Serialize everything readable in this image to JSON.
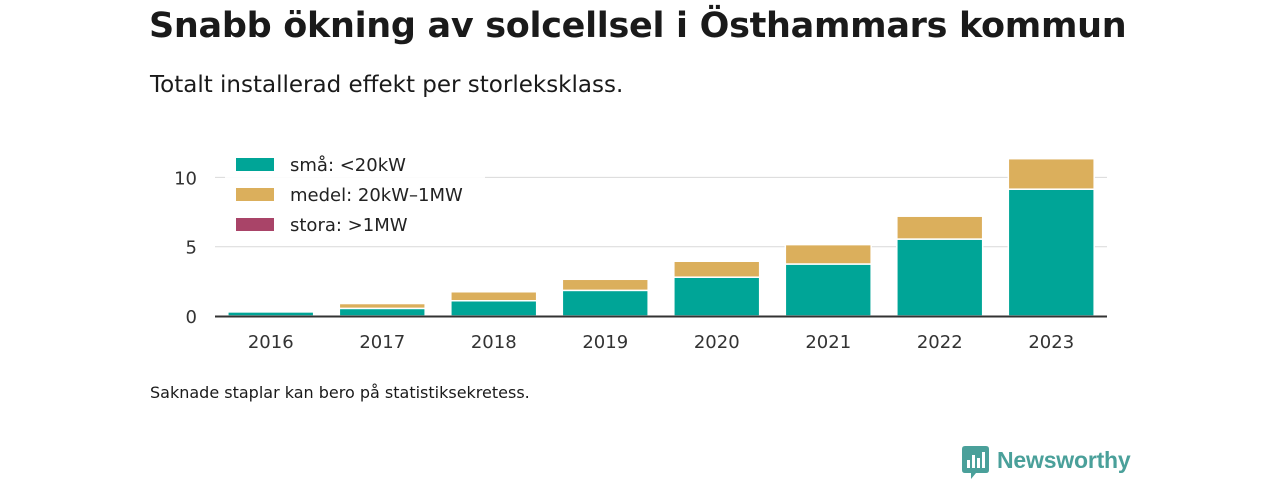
{
  "title": "Snabb ökning av solcellsel i Östhammars kommun",
  "subtitle": "Totalt installerad effekt per storleksklass.",
  "footnote": "Saknade staplar kan bero på statistiksekretess.",
  "brand": {
    "name": "Newsworthy",
    "icon": "newsworthy-logo-icon",
    "color": "#4aa09a"
  },
  "chart_data": {
    "type": "bar",
    "stacked": true,
    "categories": [
      "2016",
      "2017",
      "2018",
      "2019",
      "2020",
      "2021",
      "2022",
      "2023"
    ],
    "series": [
      {
        "name": "små: <20kW",
        "color": "#00a597",
        "values": [
          0.3,
          0.55,
          1.1,
          1.85,
          2.8,
          3.75,
          5.55,
          9.15
        ]
      },
      {
        "name": "medel: 20kW–1MW",
        "color": "#dbaf5c",
        "values": [
          0.1,
          0.35,
          0.65,
          0.8,
          1.15,
          1.4,
          1.65,
          2.2
        ]
      },
      {
        "name": "stora: >1MW",
        "color": "#a94468",
        "values": [
          0,
          0,
          0,
          0,
          0,
          0,
          0,
          0
        ]
      }
    ],
    "ylim": [
      0,
      11.4
    ],
    "yticks": [
      0,
      5,
      10
    ],
    "grid": true,
    "legend": "top-left",
    "xlabel": "",
    "ylabel": ""
  }
}
